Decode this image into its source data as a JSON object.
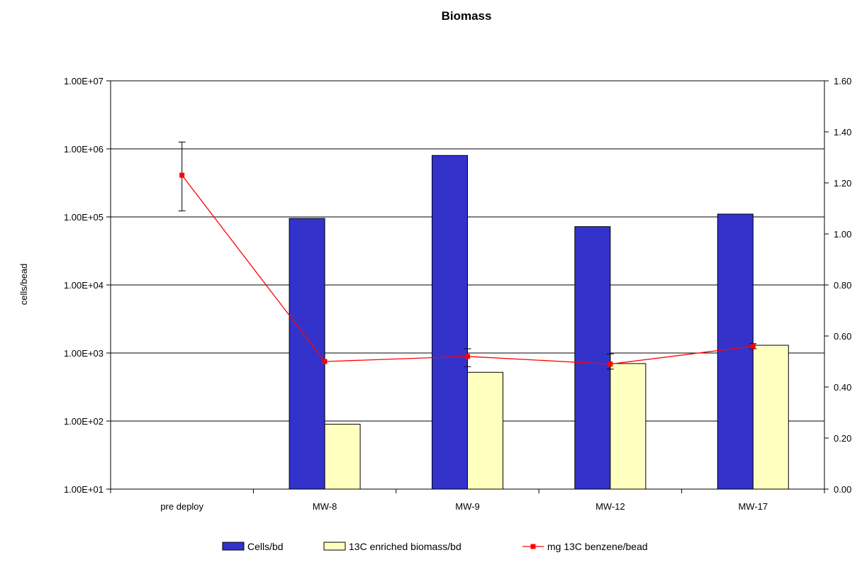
{
  "chart_data": {
    "type": "bar",
    "title": "Biomass",
    "xlabel": "",
    "ylabel": "cells/bead",
    "y2label": "",
    "categories": [
      "pre deploy",
      "MW-8",
      "MW-9",
      "MW-12",
      "MW-17"
    ],
    "y_axis": {
      "scale": "log",
      "ylim": [
        10,
        10000000
      ],
      "tick_values": [
        10,
        100,
        1000,
        10000,
        100000,
        1000000,
        10000000
      ],
      "tick_labels": [
        "1.00E+01",
        "1.00E+02",
        "1.00E+03",
        "1.00E+04",
        "1.00E+05",
        "1.00E+06",
        "1.00E+07"
      ]
    },
    "y2_axis": {
      "scale": "linear",
      "ylim": [
        0,
        1.6
      ],
      "tick_values": [
        0,
        0.2,
        0.4,
        0.6,
        0.8,
        1.0,
        1.2,
        1.4,
        1.6
      ],
      "tick_labels": [
        "0.00",
        "0.20",
        "0.40",
        "0.60",
        "0.80",
        "1.00",
        "1.20",
        "1.40",
        "1.60"
      ]
    },
    "grid": "horizontal major gridlines",
    "series": [
      {
        "name": "Cells/bd",
        "kind": "bar",
        "axis": "left",
        "color": "#3333CC",
        "values": [
          null,
          95000,
          800000,
          72000,
          110000
        ]
      },
      {
        "name": "13C enriched biomass/bd",
        "kind": "bar",
        "axis": "left",
        "color": "#FFFFC0",
        "values": [
          null,
          90,
          520,
          700,
          1300
        ]
      },
      {
        "name": "mg 13C benzene/bead",
        "kind": "line",
        "axis": "right",
        "color": "#FF0000",
        "values": [
          1.23,
          0.5,
          0.52,
          0.49,
          0.56
        ],
        "error_bars": [
          [
            1.09,
            1.36
          ],
          null,
          [
            0.48,
            0.55
          ],
          [
            0.47,
            0.53
          ],
          [
            0.55,
            0.57
          ]
        ]
      }
    ],
    "legend": {
      "position": "bottom"
    }
  }
}
